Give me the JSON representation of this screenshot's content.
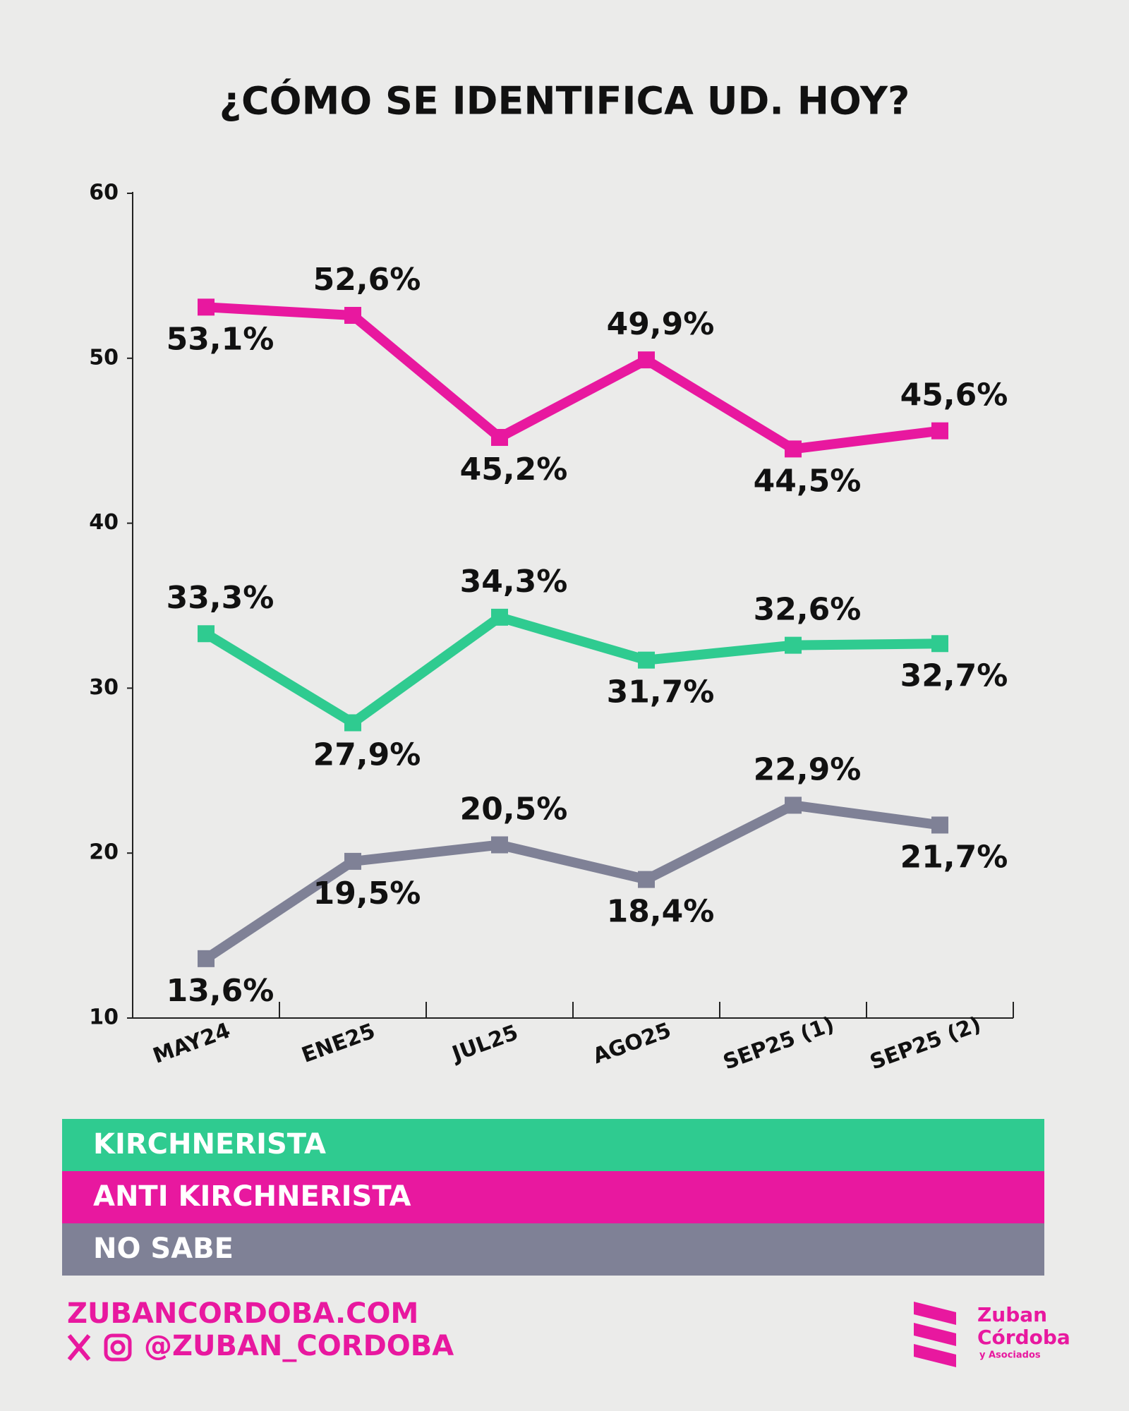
{
  "chart_data": {
    "type": "line",
    "title": "¿CÓMO SE IDENTIFICA UD. HOY?",
    "categories": [
      "MAY24",
      "ENE25",
      "JUL25",
      "AGO25",
      "SEP25 (1)",
      "SEP25 (2)"
    ],
    "series": [
      {
        "name": "KIRCHNERISTA",
        "color": "#2fcb90",
        "values": [
          33.3,
          27.9,
          34.3,
          31.7,
          32.6,
          32.7
        ],
        "value_labels": [
          "33,3%",
          "27,9%",
          "34,3%",
          "31,7%",
          "32,6%",
          "32,7%"
        ]
      },
      {
        "name": "ANTI KIRCHNERISTA",
        "color": "#e8189f",
        "values": [
          53.1,
          52.6,
          45.2,
          49.9,
          44.5,
          45.6
        ],
        "value_labels": [
          "53,1%",
          "52,6%",
          "45,2%",
          "49,9%",
          "44,5%",
          "45,6%"
        ]
      },
      {
        "name": "NO SABE",
        "color": "#7f8196",
        "values": [
          13.6,
          19.5,
          20.5,
          18.4,
          22.9,
          21.7
        ],
        "value_labels": [
          "13,6%",
          "19,5%",
          "20,5%",
          "18,4%",
          "22,9%",
          "21,7%"
        ]
      }
    ],
    "ylim": [
      10,
      60
    ],
    "yticks": [
      10,
      20,
      30,
      40,
      50,
      60
    ],
    "footer": {
      "website": "ZUBANCORDOBA.COM",
      "handle": "@ZUBAN_CORDOBA",
      "logo": [
        "Zuban",
        "Córdoba",
        "y Asociados"
      ]
    }
  }
}
